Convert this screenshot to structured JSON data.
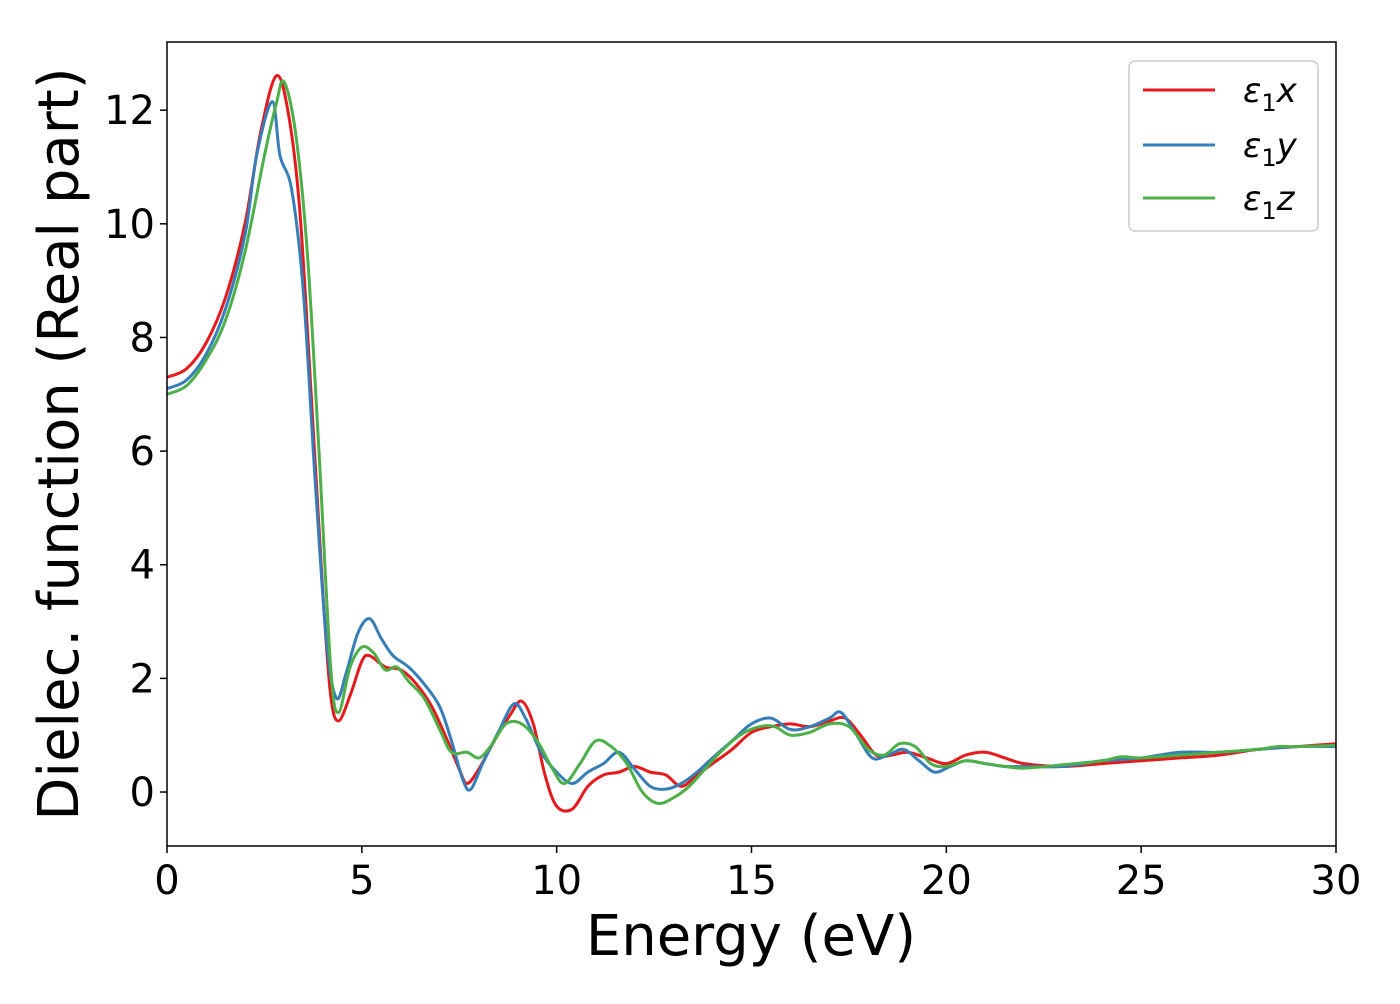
{
  "chart_data": {
    "type": "line",
    "title": "",
    "xlabel": "Energy (eV)",
    "ylabel": "Dielec. function (Real part)",
    "xlim": [
      0,
      30
    ],
    "ylim": [
      -0.95,
      13.2
    ],
    "x_ticks": [
      0,
      5,
      10,
      15,
      20,
      25,
      30
    ],
    "x_tick_labels": [
      "0",
      "5",
      "10",
      "15",
      "20",
      "25",
      "30"
    ],
    "y_ticks": [
      0,
      2,
      4,
      6,
      8,
      10,
      12
    ],
    "y_tick_labels": [
      "0",
      "2",
      "4",
      "6",
      "8",
      "10",
      "12"
    ],
    "grid": false,
    "legend_position": "top-right",
    "series": [
      {
        "name": "ε1x",
        "legend": {
          "symbol": "ε",
          "sub": "1",
          "suffix": "x"
        },
        "color": "#e41a1c",
        "points": [
          [
            0,
            7.3
          ],
          [
            0.5,
            7.45
          ],
          [
            1,
            7.9
          ],
          [
            1.5,
            8.7
          ],
          [
            2,
            10.0
          ],
          [
            2.4,
            11.6
          ],
          [
            2.8,
            12.6
          ],
          [
            3.1,
            12.0
          ],
          [
            3.4,
            10.3
          ],
          [
            3.7,
            7.0
          ],
          [
            4.0,
            3.5
          ],
          [
            4.2,
            1.7
          ],
          [
            4.4,
            1.25
          ],
          [
            4.7,
            1.7
          ],
          [
            5.0,
            2.3
          ],
          [
            5.2,
            2.4
          ],
          [
            5.6,
            2.2
          ],
          [
            6.0,
            2.15
          ],
          [
            6.4,
            1.9
          ],
          [
            6.8,
            1.5
          ],
          [
            7.2,
            0.9
          ],
          [
            7.5,
            0.4
          ],
          [
            7.7,
            0.15
          ],
          [
            8.0,
            0.4
          ],
          [
            8.4,
            0.9
          ],
          [
            8.8,
            1.35
          ],
          [
            9.1,
            1.6
          ],
          [
            9.4,
            1.2
          ],
          [
            9.7,
            0.3
          ],
          [
            10.0,
            -0.25
          ],
          [
            10.4,
            -0.3
          ],
          [
            10.8,
            0.1
          ],
          [
            11.2,
            0.3
          ],
          [
            11.6,
            0.35
          ],
          [
            12.0,
            0.45
          ],
          [
            12.4,
            0.35
          ],
          [
            12.8,
            0.3
          ],
          [
            13.2,
            0.1
          ],
          [
            13.6,
            0.3
          ],
          [
            14.0,
            0.5
          ],
          [
            14.5,
            0.75
          ],
          [
            15.0,
            1.05
          ],
          [
            15.5,
            1.15
          ],
          [
            16.0,
            1.2
          ],
          [
            16.5,
            1.15
          ],
          [
            17.0,
            1.25
          ],
          [
            17.4,
            1.3
          ],
          [
            17.8,
            1.0
          ],
          [
            18.2,
            0.65
          ],
          [
            18.6,
            0.65
          ],
          [
            19.0,
            0.7
          ],
          [
            19.5,
            0.6
          ],
          [
            20.0,
            0.5
          ],
          [
            20.5,
            0.65
          ],
          [
            21.0,
            0.7
          ],
          [
            21.5,
            0.6
          ],
          [
            22.0,
            0.5
          ],
          [
            23.0,
            0.45
          ],
          [
            24.0,
            0.5
          ],
          [
            25.0,
            0.55
          ],
          [
            26.0,
            0.6
          ],
          [
            27.0,
            0.65
          ],
          [
            28.0,
            0.75
          ],
          [
            29.0,
            0.8
          ],
          [
            30.0,
            0.85
          ]
        ]
      },
      {
        "name": "ε1y",
        "legend": {
          "symbol": "ε",
          "sub": "1",
          "suffix": "y"
        },
        "color": "#377eb8",
        "points": [
          [
            0,
            7.1
          ],
          [
            0.5,
            7.25
          ],
          [
            1,
            7.7
          ],
          [
            1.5,
            8.5
          ],
          [
            2,
            9.8
          ],
          [
            2.3,
            11.2
          ],
          [
            2.7,
            12.15
          ],
          [
            2.9,
            11.2
          ],
          [
            3.2,
            10.6
          ],
          [
            3.5,
            8.8
          ],
          [
            3.8,
            5.5
          ],
          [
            4.1,
            2.6
          ],
          [
            4.35,
            1.65
          ],
          [
            4.6,
            2.1
          ],
          [
            4.9,
            2.8
          ],
          [
            5.2,
            3.05
          ],
          [
            5.5,
            2.7
          ],
          [
            5.8,
            2.4
          ],
          [
            6.2,
            2.2
          ],
          [
            6.6,
            1.9
          ],
          [
            7.0,
            1.5
          ],
          [
            7.3,
            0.9
          ],
          [
            7.6,
            0.2
          ],
          [
            7.8,
            0.05
          ],
          [
            8.1,
            0.5
          ],
          [
            8.5,
            1.05
          ],
          [
            8.9,
            1.55
          ],
          [
            9.2,
            1.3
          ],
          [
            9.6,
            0.7
          ],
          [
            10.0,
            0.35
          ],
          [
            10.4,
            0.15
          ],
          [
            10.8,
            0.35
          ],
          [
            11.2,
            0.5
          ],
          [
            11.6,
            0.7
          ],
          [
            12.0,
            0.4
          ],
          [
            12.4,
            0.1
          ],
          [
            12.8,
            0.05
          ],
          [
            13.2,
            0.15
          ],
          [
            13.6,
            0.35
          ],
          [
            14.0,
            0.6
          ],
          [
            14.5,
            0.9
          ],
          [
            15.0,
            1.2
          ],
          [
            15.5,
            1.3
          ],
          [
            16.0,
            1.1
          ],
          [
            16.5,
            1.15
          ],
          [
            17.0,
            1.3
          ],
          [
            17.3,
            1.4
          ],
          [
            17.7,
            1.0
          ],
          [
            18.1,
            0.6
          ],
          [
            18.5,
            0.65
          ],
          [
            18.9,
            0.75
          ],
          [
            19.3,
            0.55
          ],
          [
            19.7,
            0.35
          ],
          [
            20.1,
            0.45
          ],
          [
            20.5,
            0.55
          ],
          [
            21.0,
            0.5
          ],
          [
            21.5,
            0.45
          ],
          [
            22.0,
            0.45
          ],
          [
            23.0,
            0.45
          ],
          [
            24.0,
            0.55
          ],
          [
            25.0,
            0.6
          ],
          [
            26.0,
            0.7
          ],
          [
            27.0,
            0.7
          ],
          [
            28.0,
            0.75
          ],
          [
            29.0,
            0.8
          ],
          [
            30.0,
            0.8
          ]
        ]
      },
      {
        "name": "ε1z",
        "legend": {
          "symbol": "ε",
          "sub": "1",
          "suffix": "z"
        },
        "color": "#4daf4a",
        "points": [
          [
            0,
            7.0
          ],
          [
            0.5,
            7.15
          ],
          [
            1,
            7.6
          ],
          [
            1.5,
            8.3
          ],
          [
            2,
            9.5
          ],
          [
            2.5,
            11.2
          ],
          [
            2.8,
            12.1
          ],
          [
            3.0,
            12.5
          ],
          [
            3.3,
            11.6
          ],
          [
            3.6,
            9.5
          ],
          [
            3.9,
            6.0
          ],
          [
            4.2,
            2.2
          ],
          [
            4.4,
            1.4
          ],
          [
            4.7,
            2.2
          ],
          [
            5.0,
            2.55
          ],
          [
            5.3,
            2.45
          ],
          [
            5.6,
            2.15
          ],
          [
            5.9,
            2.2
          ],
          [
            6.2,
            1.95
          ],
          [
            6.6,
            1.65
          ],
          [
            7.0,
            1.1
          ],
          [
            7.3,
            0.7
          ],
          [
            7.7,
            0.7
          ],
          [
            8.0,
            0.6
          ],
          [
            8.3,
            0.8
          ],
          [
            8.7,
            1.2
          ],
          [
            9.1,
            1.2
          ],
          [
            9.5,
            0.9
          ],
          [
            9.9,
            0.4
          ],
          [
            10.2,
            0.15
          ],
          [
            10.6,
            0.5
          ],
          [
            11.0,
            0.9
          ],
          [
            11.4,
            0.8
          ],
          [
            11.8,
            0.5
          ],
          [
            12.2,
            0.0
          ],
          [
            12.6,
            -0.2
          ],
          [
            13.0,
            -0.1
          ],
          [
            13.4,
            0.1
          ],
          [
            13.8,
            0.4
          ],
          [
            14.2,
            0.7
          ],
          [
            14.7,
            1.0
          ],
          [
            15.2,
            1.15
          ],
          [
            15.6,
            1.15
          ],
          [
            16.0,
            1.0
          ],
          [
            16.5,
            1.05
          ],
          [
            17.0,
            1.2
          ],
          [
            17.5,
            1.15
          ],
          [
            18.0,
            0.75
          ],
          [
            18.4,
            0.65
          ],
          [
            18.8,
            0.85
          ],
          [
            19.2,
            0.8
          ],
          [
            19.6,
            0.5
          ],
          [
            20.0,
            0.45
          ],
          [
            20.5,
            0.55
          ],
          [
            21.0,
            0.5
          ],
          [
            21.5,
            0.45
          ],
          [
            22.0,
            0.42
          ],
          [
            23.0,
            0.48
          ],
          [
            24.0,
            0.55
          ],
          [
            24.5,
            0.62
          ],
          [
            25.0,
            0.6
          ],
          [
            26.0,
            0.65
          ],
          [
            27.0,
            0.7
          ],
          [
            28.0,
            0.75
          ],
          [
            28.5,
            0.8
          ],
          [
            29.0,
            0.8
          ],
          [
            30.0,
            0.82
          ]
        ]
      }
    ]
  }
}
